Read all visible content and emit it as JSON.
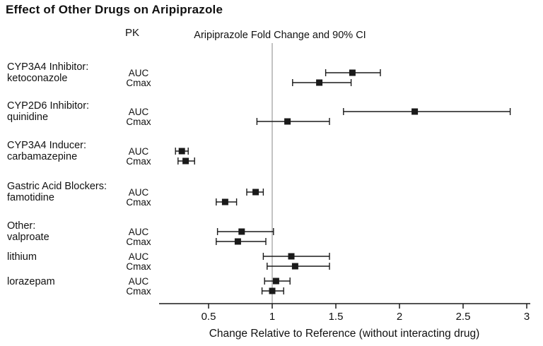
{
  "chart_data": {
    "type": "forest",
    "title": "Effect of Other Drugs on Aripiprazole",
    "column_headers": {
      "pk": "PK",
      "plot": "Aripiprazole Fold Change and 90% CI"
    },
    "xlabel": "Change Relative to Reference (without interacting drug)",
    "x_ticks": [
      0.5,
      1,
      1.5,
      2,
      2.5,
      3
    ],
    "x_tick_labels": [
      "0.5",
      "1",
      "1.5",
      "2",
      "2.5",
      "3"
    ],
    "xlim": [
      0.11,
      3.02
    ],
    "reference_line": 1,
    "grid": false,
    "groups": [
      {
        "label_lines": [
          "CYP3A4 Inhibitor:",
          "ketoconazole"
        ],
        "rows": [
          {
            "pk": "AUC",
            "lo": 1.42,
            "value": 1.63,
            "hi": 1.85
          },
          {
            "pk": "Cmax",
            "lo": 1.16,
            "value": 1.37,
            "hi": 1.62
          }
        ]
      },
      {
        "label_lines": [
          "CYP2D6 Inhibitor:",
          "quinidine"
        ],
        "rows": [
          {
            "pk": "AUC",
            "lo": 1.56,
            "value": 2.12,
            "hi": 2.87
          },
          {
            "pk": "Cmax",
            "lo": 0.88,
            "value": 1.12,
            "hi": 1.45
          }
        ]
      },
      {
        "label_lines": [
          "CYP3A4 Inducer:",
          "carbamazepine"
        ],
        "rows": [
          {
            "pk": "AUC",
            "lo": 0.24,
            "value": 0.29,
            "hi": 0.34
          },
          {
            "pk": "Cmax",
            "lo": 0.26,
            "value": 0.32,
            "hi": 0.39
          }
        ]
      },
      {
        "label_lines": [
          "Gastric Acid Blockers:",
          "famotidine"
        ],
        "rows": [
          {
            "pk": "AUC",
            "lo": 0.8,
            "value": 0.87,
            "hi": 0.93
          },
          {
            "pk": "Cmax",
            "lo": 0.56,
            "value": 0.63,
            "hi": 0.72
          }
        ]
      },
      {
        "label_lines": [
          "Other:",
          "valproate"
        ],
        "rows": [
          {
            "pk": "AUC",
            "lo": 0.57,
            "value": 0.76,
            "hi": 1.01
          },
          {
            "pk": "Cmax",
            "lo": 0.56,
            "value": 0.73,
            "hi": 0.95
          }
        ]
      },
      {
        "label_lines": [
          "lithium"
        ],
        "rows": [
          {
            "pk": "AUC",
            "lo": 0.93,
            "value": 1.15,
            "hi": 1.45
          },
          {
            "pk": "Cmax",
            "lo": 0.96,
            "value": 1.18,
            "hi": 1.45
          }
        ]
      },
      {
        "label_lines": [
          "lorazepam"
        ],
        "rows": [
          {
            "pk": "AUC",
            "lo": 0.94,
            "value": 1.03,
            "hi": 1.14
          },
          {
            "pk": "Cmax",
            "lo": 0.92,
            "value": 1.0,
            "hi": 1.09
          }
        ]
      }
    ]
  },
  "colors": {
    "marker": "#1a1a1a",
    "axis": "#1a1a1a",
    "reference_line": "#9b9b9b",
    "text": "#111111"
  }
}
